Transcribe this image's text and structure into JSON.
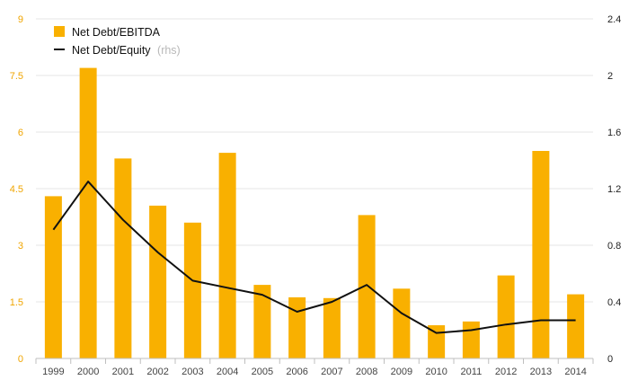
{
  "chart_data": {
    "type": "bar",
    "categories": [
      "1999",
      "2000",
      "2001",
      "2002",
      "2003",
      "2004",
      "2005",
      "2006",
      "2007",
      "2008",
      "2009",
      "2010",
      "2011",
      "2012",
      "2013",
      "2014"
    ],
    "series": [
      {
        "name": "Net Debt/EBITDA",
        "type": "bar",
        "axis": "left",
        "color": "#f9b000",
        "values": [
          4.3,
          7.7,
          5.3,
          4.05,
          3.6,
          5.45,
          1.95,
          1.62,
          1.6,
          3.8,
          1.85,
          0.88,
          0.98,
          2.2,
          5.5,
          1.7
        ]
      },
      {
        "name": "Net Debt/Equity",
        "name_suffix": "(rhs)",
        "type": "line",
        "axis": "right",
        "color": "#111111",
        "values": [
          0.91,
          1.25,
          0.98,
          0.75,
          0.55,
          0.5,
          0.45,
          0.33,
          0.4,
          0.52,
          0.32,
          0.18,
          0.2,
          0.24,
          0.27,
          0.27
        ]
      }
    ],
    "y_left": {
      "ylim": [
        0,
        9
      ],
      "ticks": [
        "0",
        "1.5",
        "3",
        "4.5",
        "6",
        "7.5",
        "9"
      ],
      "color": "#f0a500"
    },
    "y_right": {
      "ylim": [
        0,
        2.4
      ],
      "ticks": [
        "0",
        "0.4",
        "0.8",
        "1.2",
        "1.6",
        "2",
        "2.4"
      ]
    },
    "grid": true,
    "legend": "top-left",
    "title": "",
    "xlabel": "",
    "ylabel": ""
  }
}
